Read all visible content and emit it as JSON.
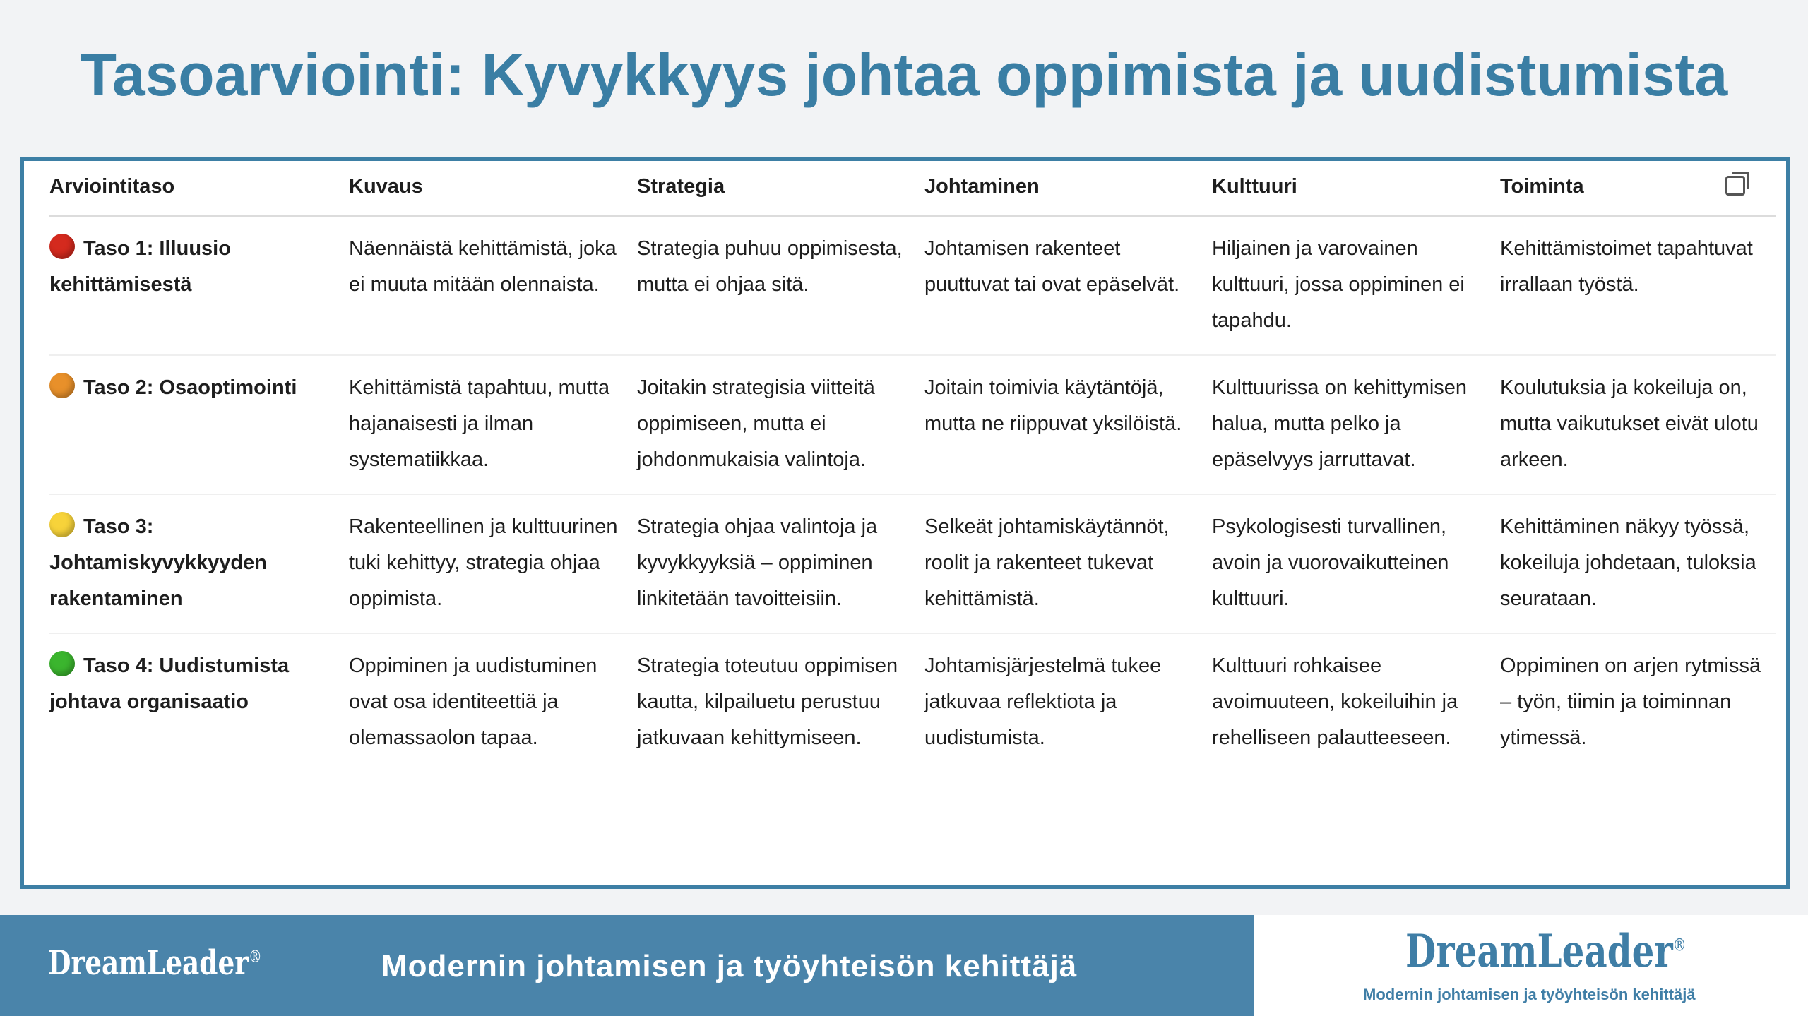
{
  "title": "Tasoarviointi: Kyvykkyys johtaa oppimista ja uudistumista",
  "table": {
    "headers": [
      "Arviointitaso",
      "Kuvaus",
      "Strategia",
      "Johtaminen",
      "Kulttuuri",
      "Toiminta"
    ],
    "copy_icon": "copy-icon",
    "rows": [
      {
        "dot_color": "#d42a1e",
        "cells": [
          "Taso 1: Illuusio kehittämisestä",
          "Näennäistä kehittämistä, joka ei muuta mitään olennaista.",
          "Strategia puhuu oppimisesta, mutta ei ohjaa sitä.",
          "Johtamisen rakenteet puuttuvat tai ovat epäselvät.",
          "Hiljainen ja varovainen kulttuuri, jossa oppiminen ei tapahdu.",
          "Kehittämistoimet tapahtuvat irrallaan työstä."
        ]
      },
      {
        "dot_color": "#e8902a",
        "cells": [
          "Taso 2: Osaoptimointi",
          "Kehittämistä tapahtuu, mutta hajanaisesti ja ilman systematiikkaa.",
          "Joitakin strategisia viitteitä oppimiseen, mutta ei johdonmukaisia valintoja.",
          "Joitain toimivia käytäntöjä, mutta ne riippuvat yksilöistä.",
          "Kulttuurissa on kehittymisen halua, mutta pelko ja epäselvyys jarruttavat.",
          "Koulutuksia ja kokeiluja on, mutta vaikutukset eivät ulotu arkeen."
        ]
      },
      {
        "dot_color": "#f7d33a",
        "cells": [
          "Taso 3: Johtamiskyvykkyyden rakentaminen",
          "Rakenteellinen ja kulttuurinen tuki kehittyy, strategia ohjaa oppimista.",
          "Strategia ohjaa valintoja ja kyvykkyyksiä – oppiminen linkitetään tavoitteisiin.",
          "Selkeät johtamiskäytännöt, roolit ja rakenteet tukevat kehittämistä.",
          "Psykologisesti turvallinen, avoin ja vuorovaikutteinen kulttuuri.",
          "Kehittäminen näkyy työssä, kokeiluja johdetaan, tuloksia seurataan."
        ]
      },
      {
        "dot_color": "#3bb52e",
        "cells": [
          "Taso 4: Uudistumista johtava organisaatio",
          "Oppiminen ja uudistuminen ovat osa identiteettiä ja olemassaolon tapaa.",
          "Strategia toteutuu oppimisen kautta, kilpailuetu perustuu jatkuvaan kehittymiseen.",
          "Johtamisjärjestelmä tukee jatkuvaa reflektiota ja uudistumista.",
          "Kulttuuri rohkaisee avoimuuteen, kokeiluihin ja rehelliseen palautteeseen.",
          "Oppiminen on arjen rytmissä – työn, tiimin ja toiminnan ytimessä."
        ]
      }
    ]
  },
  "footer": {
    "logo": "DreamLeader",
    "registered": "®",
    "tagline": "Modernin johtamisen ja työyhteisön kehittäjä"
  }
}
